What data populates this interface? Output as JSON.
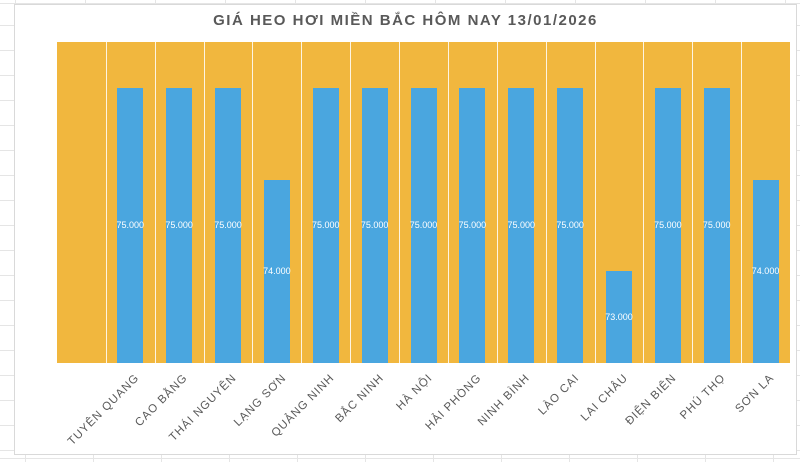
{
  "chart_data": {
    "type": "bar",
    "title": "GIÁ HEO HƠI MIỀN BẮC HÔM NAY 13/01/2026",
    "categories": [
      "",
      "TUYÊN QUANG",
      "CAO BẰNG",
      "THÁI NGUYÊN",
      "LẠNG SƠN",
      "QUẢNG NINH",
      "BẮC NINH",
      "HÀ NỘI",
      "HẢI PHÒNG",
      "NINH BÌNH",
      "LÀO CAI",
      "LAI CHÂU",
      "ĐIỆN BIÊN",
      "PHÚ THỌ",
      "SƠN LA"
    ],
    "values": [
      null,
      75000,
      75000,
      75000,
      74000,
      75000,
      75000,
      75000,
      75000,
      75000,
      75000,
      73000,
      75000,
      75000,
      74000
    ],
    "value_labels": [
      "",
      "75.000",
      "75.000",
      "75.000",
      "74.000",
      "75.000",
      "75.000",
      "75.000",
      "75.000",
      "75.000",
      "75.000",
      "73.000",
      "75.000",
      "75.000",
      "74.000"
    ],
    "xlabel": "",
    "ylabel": "",
    "ylim": [
      72000,
      75500
    ],
    "grid": false,
    "legend": "none",
    "value_label_position": "inside-center",
    "category_label_rotation_deg": 45,
    "colors": {
      "bar": "#4AA6DF",
      "plot_background": "#F1B73E",
      "column_separator": "#FFFFFF",
      "value_label": "#FFFFFF",
      "axis_text": "#595959",
      "title_text": "#595959"
    }
  }
}
